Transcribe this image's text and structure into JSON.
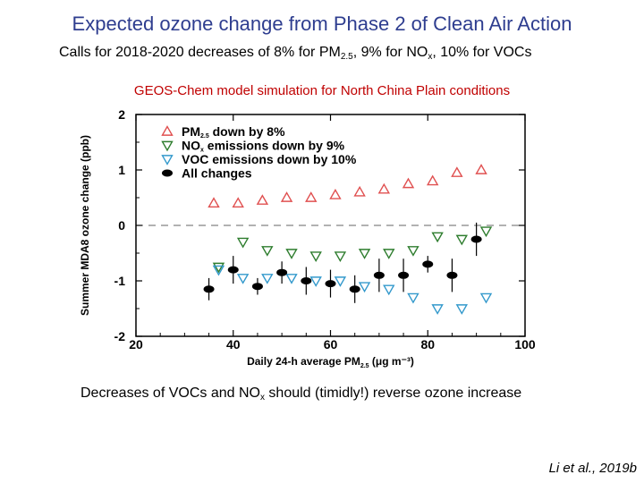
{
  "slide": {
    "title": "Expected ozone change from Phase 2 of Clean Air Action",
    "subtitle": {
      "prefix": "Calls for 2018-2020 decreases of 8% for PM",
      "pm_sub": "2.5",
      "mid": ", 9% for NO",
      "nox_sub": "x",
      "suffix": ", 10% for VOCs"
    },
    "simulation_title": "GEOS-Chem model simulation for North China Plain conditions",
    "conclusion": {
      "prefix": "Decreases of VOCs and NO",
      "sub": "x",
      "suffix": " should (timidly!) reverse ozone increase"
    },
    "citation": "Li et al., 2019b"
  },
  "colors": {
    "title": "#2e3d8f",
    "sim_title": "#c00000",
    "pm25": "#e05050",
    "nox": "#2e7d2e",
    "voc": "#3399cc",
    "all": "#000000"
  },
  "chart_data": {
    "type": "scatter",
    "title": "",
    "xlabel": {
      "text": "Daily 24-h average PM",
      "sub": "2.5",
      "unit": "(μg m⁻³)"
    },
    "ylabel": "Summer MDA8 ozone change (ppb)",
    "xlim": [
      20,
      100
    ],
    "ylim": [
      -2,
      2
    ],
    "xticks": [
      20,
      40,
      60,
      80,
      100
    ],
    "yticks": [
      -2,
      -1,
      0,
      1,
      2
    ],
    "zero_line": "dashed",
    "legend_position": "top-left",
    "series": [
      {
        "name": "PM2.5 down by 8%",
        "legend_main": "PM",
        "legend_sub": "2.5",
        "legend_rest": " down by 8%",
        "marker": "triangle-up",
        "color_key": "pm25",
        "points": [
          [
            36,
            0.4
          ],
          [
            41,
            0.4
          ],
          [
            46,
            0.45
          ],
          [
            51,
            0.5
          ],
          [
            56,
            0.5
          ],
          [
            61,
            0.55
          ],
          [
            66,
            0.6
          ],
          [
            71,
            0.65
          ],
          [
            76,
            0.75
          ],
          [
            81,
            0.8
          ],
          [
            86,
            0.95
          ],
          [
            91,
            1.0
          ]
        ]
      },
      {
        "name": "NOx emissions down by 9%",
        "legend_main": "NO",
        "legend_sub": "x",
        "legend_rest": " emissions down by 9%",
        "marker": "triangle-down",
        "color_key": "nox",
        "points": [
          [
            37,
            -0.75
          ],
          [
            42,
            -0.3
          ],
          [
            47,
            -0.45
          ],
          [
            52,
            -0.5
          ],
          [
            57,
            -0.55
          ],
          [
            62,
            -0.55
          ],
          [
            67,
            -0.5
          ],
          [
            72,
            -0.5
          ],
          [
            77,
            -0.45
          ],
          [
            82,
            -0.2
          ],
          [
            87,
            -0.25
          ],
          [
            92,
            -0.1
          ]
        ]
      },
      {
        "name": "VOC emissions down by 10%",
        "legend_main": "VOC emissions down by 10%",
        "legend_sub": "",
        "legend_rest": "",
        "marker": "triangle-down",
        "color_key": "voc",
        "points": [
          [
            37,
            -0.8
          ],
          [
            42,
            -0.95
          ],
          [
            47,
            -0.95
          ],
          [
            52,
            -0.95
          ],
          [
            57,
            -1.0
          ],
          [
            62,
            -1.0
          ],
          [
            67,
            -1.1
          ],
          [
            72,
            -1.15
          ],
          [
            77,
            -1.3
          ],
          [
            82,
            -1.5
          ],
          [
            87,
            -1.5
          ],
          [
            92,
            -1.3
          ]
        ]
      },
      {
        "name": "All changes",
        "legend_main": "All changes",
        "legend_sub": "",
        "legend_rest": "",
        "marker": "circle",
        "color_key": "all",
        "points": [
          [
            35,
            -1.15
          ],
          [
            40,
            -0.8
          ],
          [
            45,
            -1.1
          ],
          [
            50,
            -0.85
          ],
          [
            55,
            -1.0
          ],
          [
            60,
            -1.05
          ],
          [
            65,
            -1.15
          ],
          [
            70,
            -0.9
          ],
          [
            75,
            -0.9
          ],
          [
            80,
            -0.7
          ],
          [
            85,
            -0.9
          ],
          [
            90,
            -0.25
          ]
        ],
        "error_bars": [
          0.2,
          0.25,
          0.15,
          0.2,
          0.25,
          0.25,
          0.25,
          0.3,
          0.3,
          0.15,
          0.3,
          0.3
        ]
      }
    ]
  }
}
